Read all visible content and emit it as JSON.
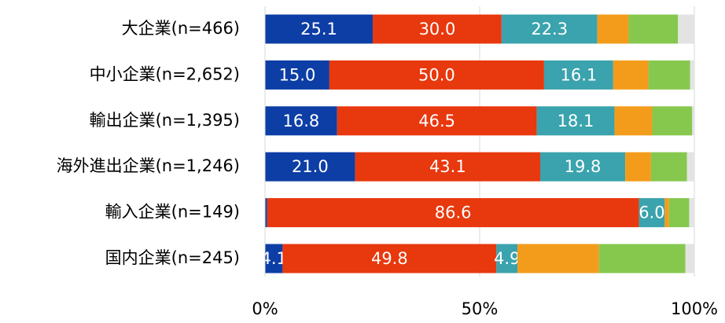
{
  "chart_data": {
    "type": "stacked-bar-horizontal",
    "categories": [
      "大企業(n=466)",
      "中小企業(n=2,652)",
      "輸出企業(n=1,395)",
      "海外進出企業(n=1,246)",
      "輸入企業(n=149)",
      "国内企業(n=245)"
    ],
    "series": [
      {
        "color": "#0d3ea6",
        "values": [
          25.1,
          15.0,
          16.8,
          21.0,
          0.5,
          4.1
        ],
        "value_labels": [
          "25.1",
          "15.0",
          "16.8",
          "21.0",
          null,
          "4.1"
        ]
      },
      {
        "color": "#e8380d",
        "values": [
          30.0,
          50.0,
          46.5,
          43.1,
          86.6,
          49.8
        ],
        "value_labels": [
          "30.0",
          "50.0",
          "46.5",
          "43.1",
          "86.6",
          "49.8"
        ]
      },
      {
        "color": "#3aa3ad",
        "values": [
          22.3,
          16.1,
          18.1,
          19.8,
          6.0,
          4.9
        ],
        "value_labels": [
          "22.3",
          "16.1",
          "18.1",
          "19.8",
          "6.0",
          "4.9"
        ]
      },
      {
        "color": "#f39c1b",
        "values": [
          7.3,
          8.2,
          8.8,
          6.0,
          1.0,
          19.0
        ]
      },
      {
        "color": "#86c84e",
        "values": [
          11.5,
          9.7,
          9.3,
          8.4,
          4.7,
          20.1
        ]
      },
      {
        "color": "#e3e3e3",
        "values": [
          3.8,
          1.0,
          0.5,
          1.7,
          1.2,
          2.1
        ]
      }
    ],
    "xlim": [
      0,
      100
    ],
    "xticks": [
      {
        "value": 0,
        "label": "0%"
      },
      {
        "value": 50,
        "label": "50%"
      },
      {
        "value": 100,
        "label": "100%"
      }
    ],
    "grid": true
  }
}
